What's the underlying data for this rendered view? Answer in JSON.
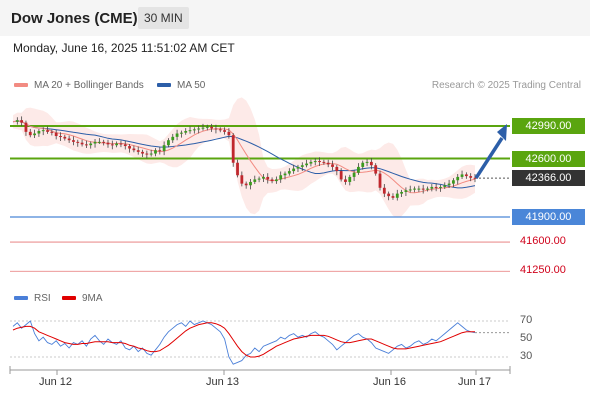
{
  "header": {
    "title": "Dow Jones (CME)",
    "interval": "30 MIN",
    "datetime": "Monday, June 16, 2025 11:51:02 AM CET"
  },
  "legend": {
    "ma20": {
      "label": "MA 20 + Bollinger Bands",
      "color": "#f28b82"
    },
    "ma50": {
      "label": "MA 50",
      "color": "#2c5ea8"
    }
  },
  "copyright": "Research © 2025 Trading Central",
  "chart_data": {
    "type": "line",
    "ylim": [
      41100,
      43200
    ],
    "levels": [
      {
        "label": "42990.00",
        "value": 42990,
        "kind": "resistance",
        "color": "#5aa50f"
      },
      {
        "label": "42600.00",
        "value": 42600,
        "kind": "resistance",
        "color": "#5aa50f"
      },
      {
        "label": "42366.00",
        "value": 42366,
        "kind": "last",
        "color": "#333333"
      },
      {
        "label": "41900.00",
        "value": 41900,
        "kind": "support",
        "color": "#4a86d8"
      },
      {
        "label": "41600.00",
        "value": 41600,
        "kind": "support-minor",
        "color": "#e57373"
      },
      {
        "label": "41250.00",
        "value": 41250,
        "kind": "support-minor",
        "color": "#e57373"
      }
    ],
    "x_labels": [
      "Jun 12",
      "Jun 13",
      "Jun 16",
      "Jun 17"
    ],
    "close_series": [
      43040,
      43060,
      43030,
      42920,
      42880,
      42900,
      42930,
      42940,
      42920,
      42910,
      42870,
      42860,
      42840,
      42820,
      42800,
      42790,
      42770,
      42760,
      42780,
      42800,
      42800,
      42790,
      42770,
      42760,
      42780,
      42770,
      42750,
      42720,
      42700,
      42680,
      42660,
      42650,
      42660,
      42700,
      42690,
      42760,
      42820,
      42860,
      42900,
      42910,
      42930,
      42940,
      42950,
      42960,
      42970,
      42980,
      42960,
      42950,
      42940,
      42920,
      42880,
      42550,
      42400,
      42300,
      42280,
      42320,
      42350,
      42360,
      42380,
      42350,
      42330,
      42350,
      42400,
      42420,
      42450,
      42480,
      42500,
      42520,
      42540,
      42560,
      42570,
      42560,
      42550,
      42530,
      42500,
      42450,
      42350,
      42320,
      42380,
      42430,
      42500,
      42550,
      42560,
      42520,
      42420,
      42250,
      42180,
      42150,
      42130,
      42180,
      42200,
      42220,
      42230,
      42240,
      42240,
      42230,
      42240,
      42260,
      42250,
      42260,
      42280,
      42300,
      42340,
      42380,
      42410,
      42390,
      42370,
      42366
    ],
    "rsi": {
      "ylim": [
        0,
        100
      ],
      "ticks": [
        70,
        50,
        30
      ],
      "labels": {
        "rsi": "RSI",
        "ma": "9MA"
      },
      "rsi_series": [
        64,
        68,
        62,
        66,
        70,
        56,
        48,
        52,
        46,
        44,
        48,
        42,
        45,
        40,
        46,
        44,
        48,
        42,
        50,
        54,
        48,
        44,
        50,
        46,
        44,
        48,
        40,
        38,
        42,
        36,
        40,
        34,
        32,
        38,
        44,
        52,
        58,
        62,
        66,
        68,
        64,
        70,
        66,
        68,
        70,
        68,
        66,
        62,
        58,
        50,
        30,
        22,
        24,
        26,
        32,
        34,
        40,
        36,
        42,
        44,
        46,
        48,
        52,
        50,
        54,
        56,
        52,
        54,
        52,
        56,
        58,
        54,
        52,
        48,
        44,
        38,
        42,
        46,
        50,
        54,
        56,
        52,
        50,
        46,
        40,
        38,
        36,
        34,
        38,
        42,
        44,
        40,
        42,
        46,
        48,
        44,
        46,
        50,
        48,
        52,
        56,
        60,
        64,
        68,
        64,
        60,
        58,
        57
      ],
      "ma_series": [
        60,
        62,
        63,
        64,
        64,
        62,
        58,
        56,
        54,
        52,
        50,
        48,
        46,
        45,
        44,
        44,
        45,
        45,
        46,
        47,
        47,
        47,
        47,
        46,
        46,
        46,
        45,
        43,
        42,
        40,
        39,
        37,
        36,
        36,
        37,
        40,
        43,
        47,
        51,
        55,
        59,
        62,
        64,
        66,
        67,
        68,
        68,
        67,
        65,
        62,
        56,
        49,
        42,
        36,
        32,
        30,
        30,
        31,
        33,
        36,
        39,
        42,
        44,
        46,
        48,
        50,
        51,
        52,
        53,
        54,
        54,
        54,
        54,
        53,
        51,
        49,
        47,
        46,
        46,
        47,
        48,
        49,
        50,
        50,
        48,
        46,
        44,
        42,
        40,
        39,
        39,
        39,
        40,
        41,
        42,
        43,
        44,
        45,
        46,
        47,
        49,
        51,
        53,
        55,
        57,
        58,
        58,
        58
      ]
    }
  }
}
